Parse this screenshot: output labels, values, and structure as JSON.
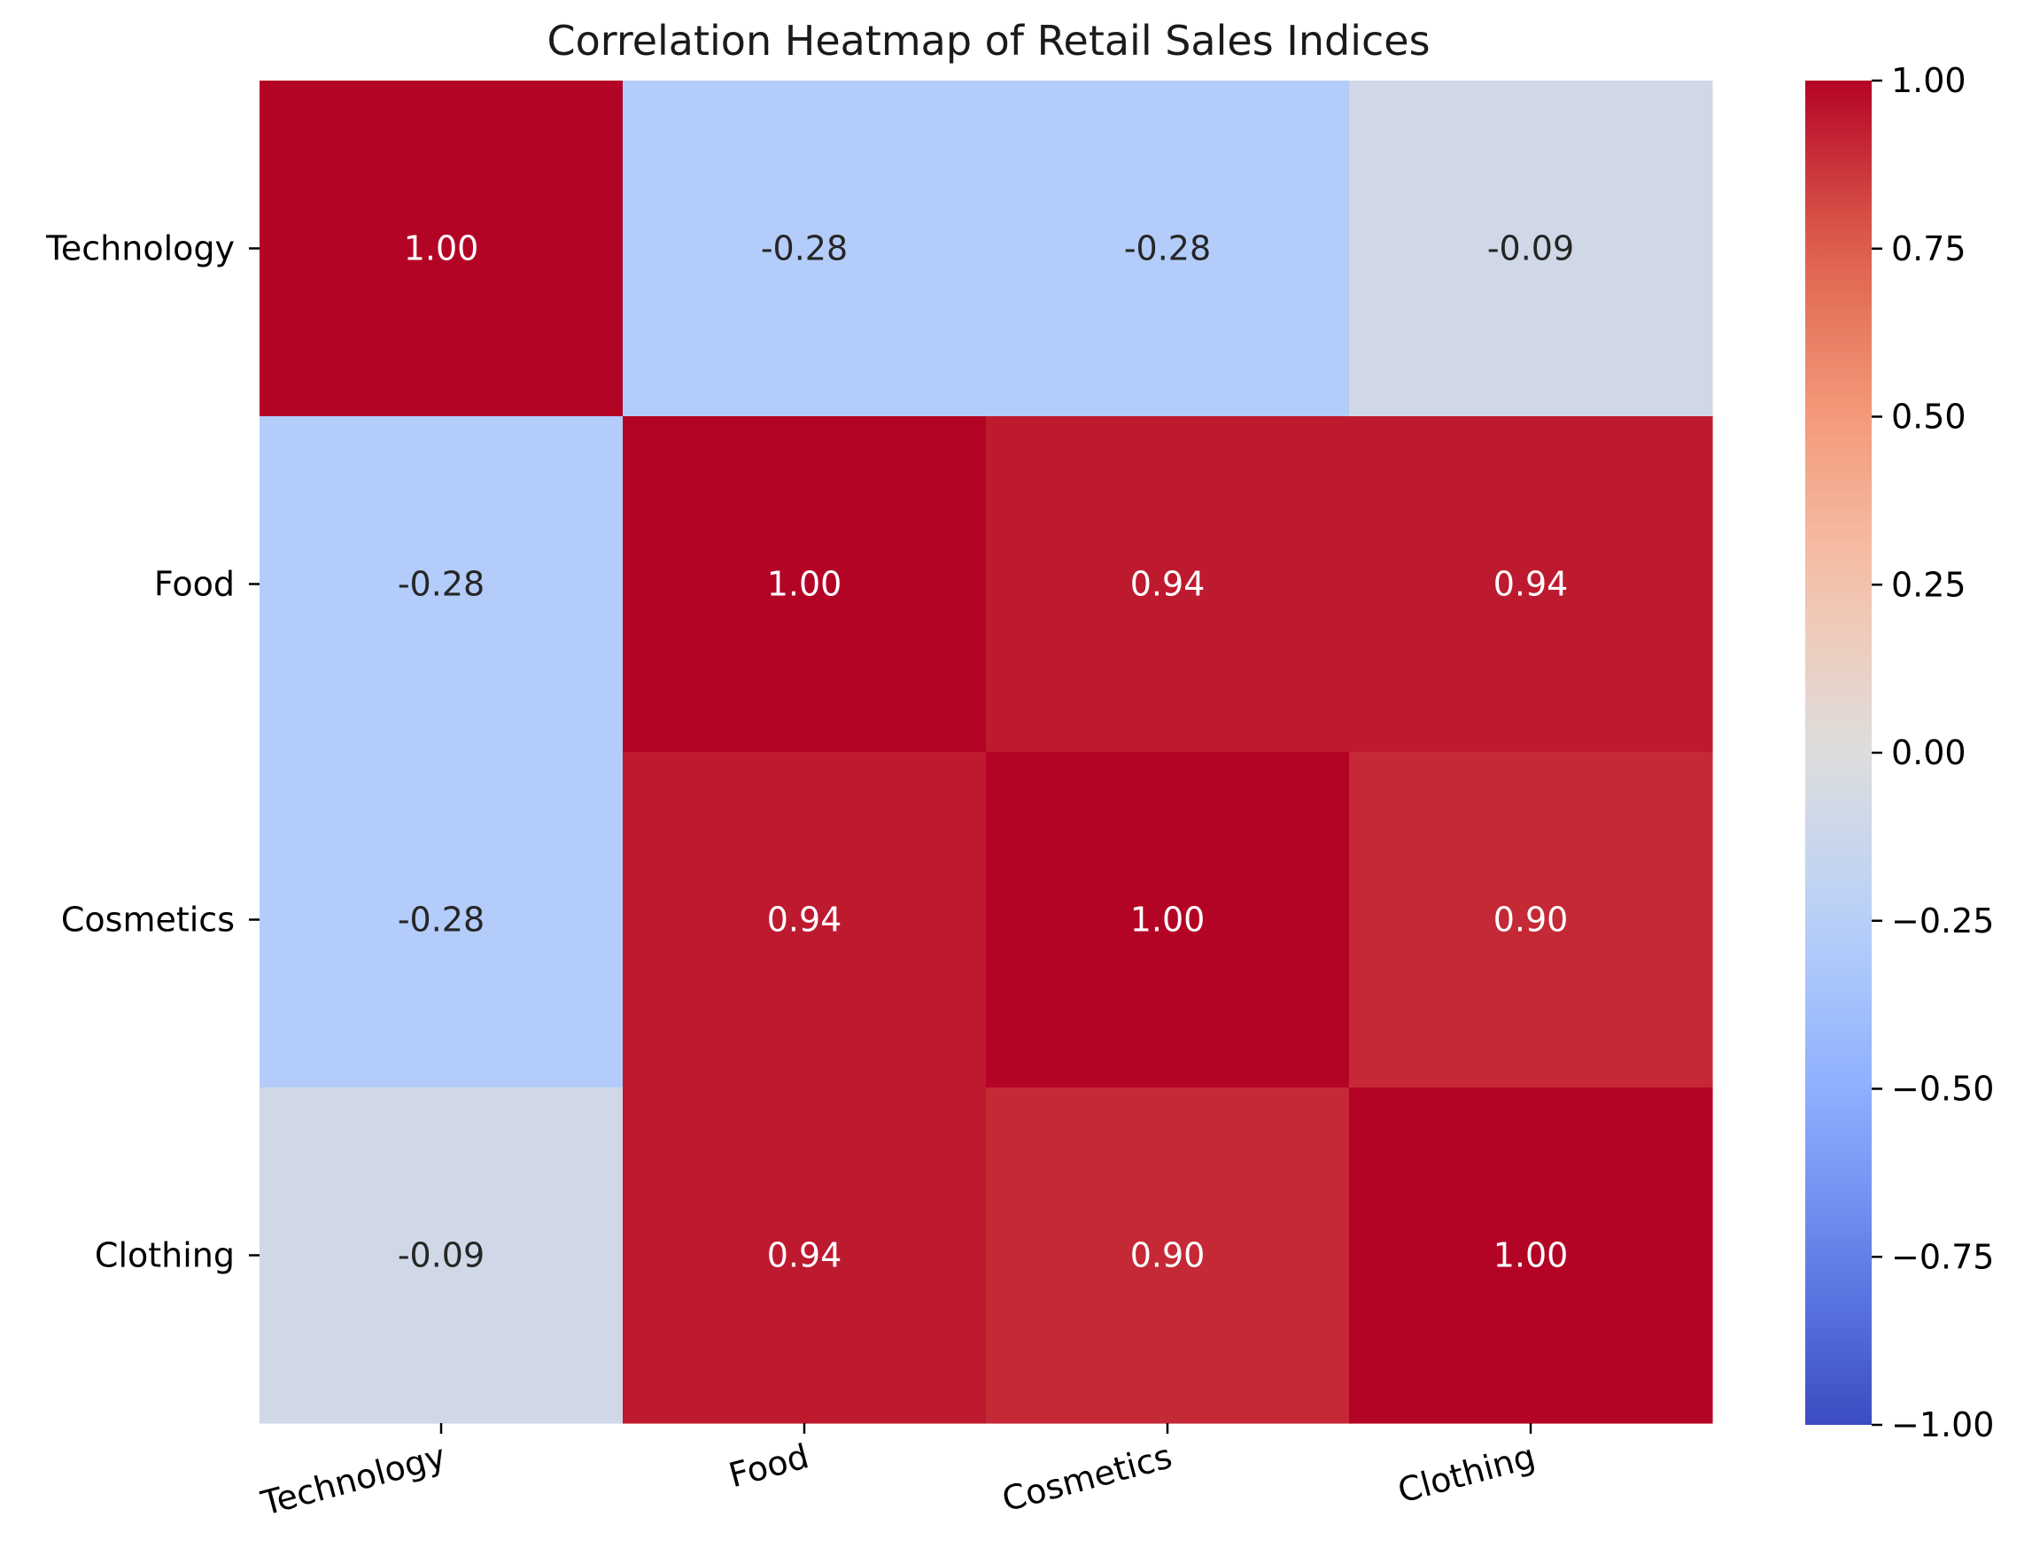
{
  "chart_data": {
    "type": "heatmap",
    "title": "Correlation Heatmap of Retail Sales Indices",
    "xlabel": "",
    "ylabel": "",
    "x_categories": [
      "Technology",
      "Food",
      "Cosmetics",
      "Clothing"
    ],
    "y_categories": [
      "Technology",
      "Food",
      "Cosmetics",
      "Clothing"
    ],
    "values": [
      [
        1.0,
        -0.28,
        -0.28,
        -0.09
      ],
      [
        -0.28,
        1.0,
        0.94,
        0.94
      ],
      [
        -0.28,
        0.94,
        1.0,
        0.9
      ],
      [
        -0.09,
        0.94,
        0.9,
        1.0
      ]
    ],
    "annotation_format": "0.00",
    "colormap": "coolwarm",
    "vmin": -1.0,
    "vmax": 1.0,
    "colorbar": {
      "position": "right",
      "ticks": [
        1.0,
        0.75,
        0.5,
        0.25,
        0.0,
        -0.25,
        -0.5,
        -0.75,
        -1.0
      ],
      "tick_labels": [
        "1.00",
        "0.75",
        "0.50",
        "0.25",
        "0.00",
        "−0.25",
        "−0.50",
        "−0.75",
        "−1.00"
      ]
    },
    "x_tick_rotation_deg": 15,
    "grid": false
  }
}
